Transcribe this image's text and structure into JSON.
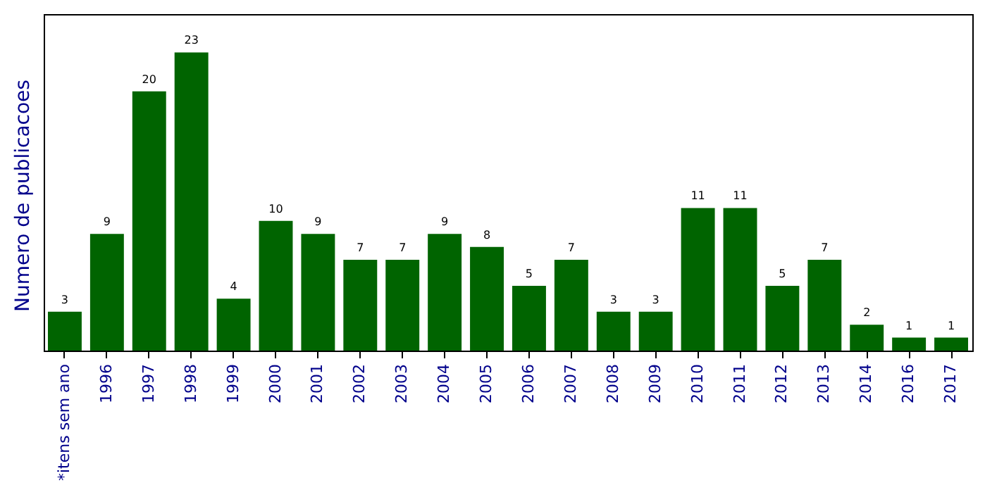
{
  "chart_data": {
    "type": "bar",
    "ylabel": "Numero de publicacoes",
    "categories": [
      "*itens sem ano",
      "1996",
      "1997",
      "1998",
      "1999",
      "2000",
      "2001",
      "2002",
      "2003",
      "2004",
      "2005",
      "2006",
      "2007",
      "2008",
      "2009",
      "2010",
      "2011",
      "2012",
      "2013",
      "2014",
      "2016",
      "2017"
    ],
    "values": [
      3,
      9,
      20,
      23,
      4,
      10,
      9,
      7,
      7,
      9,
      8,
      5,
      7,
      3,
      3,
      11,
      11,
      5,
      7,
      2,
      1,
      1
    ],
    "color": "#006400",
    "data_labels": true,
    "tick_labels": "x"
  }
}
